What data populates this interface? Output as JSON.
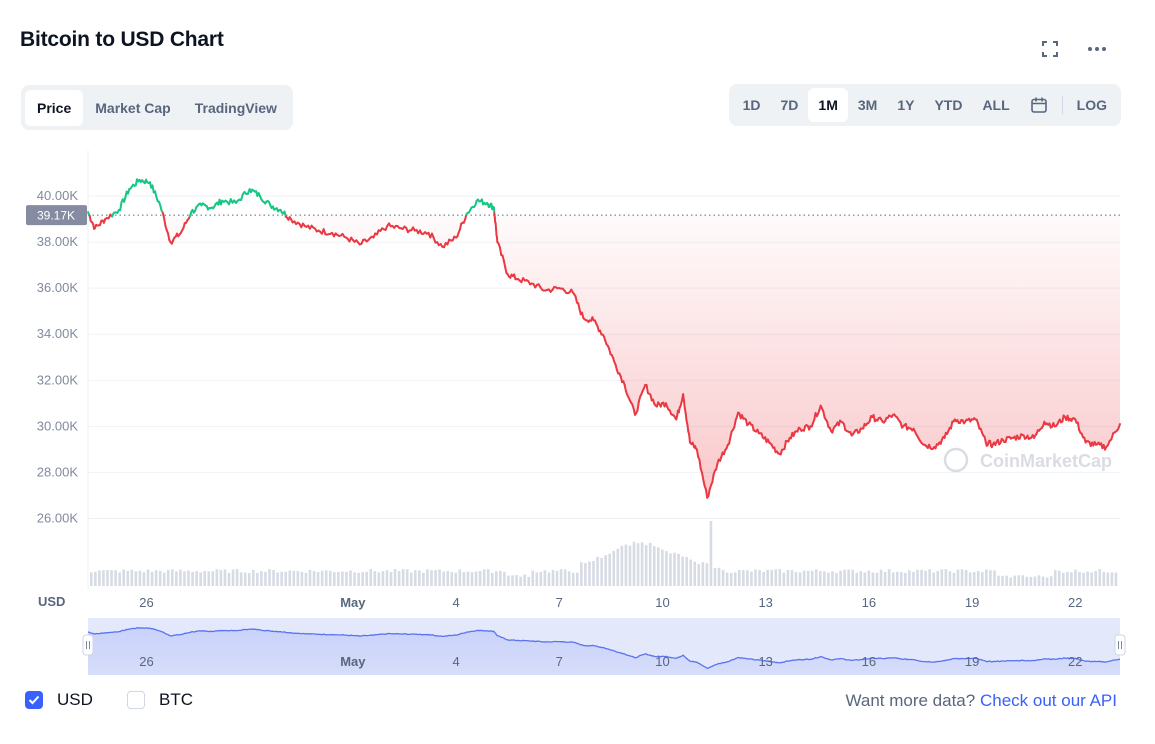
{
  "header": {
    "title": "Bitcoin to USD Chart",
    "fullscreen_icon": "fullscreen-icon",
    "more_icon": "more-horizontal-icon"
  },
  "tabs": [
    {
      "label": "Price",
      "active": true
    },
    {
      "label": "Market Cap",
      "active": false
    },
    {
      "label": "TradingView",
      "active": false
    }
  ],
  "ranges": [
    {
      "label": "1D"
    },
    {
      "label": "7D"
    },
    {
      "label": "1M",
      "active": true
    },
    {
      "label": "3M"
    },
    {
      "label": "1Y"
    },
    {
      "label": "YTD"
    },
    {
      "label": "ALL"
    }
  ],
  "calendar_icon": "calendar-icon",
  "log_label": "LOG",
  "colors": {
    "up": "#16c784",
    "down": "#ea3943",
    "accent": "#3861fb",
    "muted": "#58667e",
    "grid": "#eff2f5"
  },
  "watermark": "CoinMarketCap",
  "chart_data": {
    "type": "line",
    "title": "Bitcoin to USD Chart",
    "ylabel": "",
    "xlabel": "",
    "unit_label": "USD",
    "ylim": [
      24500,
      42000
    ],
    "yticks": [
      26000,
      28000,
      30000,
      32000,
      34000,
      36000,
      38000,
      40000
    ],
    "ytick_labels": [
      "26.00K",
      "28.00K",
      "30.00K",
      "32.00K",
      "34.00K",
      "36.00K",
      "38.00K",
      "40.00K"
    ],
    "xlim": [
      24.3,
      54.3
    ],
    "xticks": [
      26,
      32,
      35,
      38,
      41,
      44,
      47,
      50,
      53
    ],
    "xtick_labels": [
      "26",
      "May",
      "4",
      "7",
      "10",
      "13",
      "16",
      "19",
      "22"
    ],
    "reference": {
      "value": 39170,
      "label": "39.17K"
    },
    "series": [
      {
        "x": [
          24.3,
          24.5,
          24.8,
          25.2,
          25.5,
          25.8,
          26.1,
          26.4,
          26.7,
          27.0,
          27.3,
          27.6,
          27.9,
          28.2,
          28.6,
          29.0,
          29.3,
          29.6,
          29.9,
          30.2,
          30.6,
          31.0,
          31.4,
          31.8,
          32.2,
          32.6,
          33.0,
          33.4,
          33.8,
          34.2,
          34.6,
          35.0,
          35.3,
          35.6,
          35.9,
          36.1,
          36.2,
          36.5,
          36.8,
          37.2,
          37.6,
          38.0,
          38.4,
          38.7,
          39.0,
          39.3,
          39.6,
          39.9,
          40.2,
          40.5,
          40.8,
          41.1,
          41.4,
          41.6,
          41.8,
          42.0,
          42.3,
          42.6,
          42.9,
          43.2,
          43.5,
          43.8,
          44.1,
          44.4,
          44.7,
          45.0,
          45.3,
          45.6,
          45.9,
          46.2,
          46.5,
          46.8,
          47.1,
          47.4,
          47.7,
          48.0,
          48.3,
          48.6,
          48.9,
          49.2,
          49.5,
          49.8,
          50.1,
          50.4,
          50.6,
          50.9,
          51.2,
          51.5,
          51.8,
          52.1,
          52.4,
          52.7,
          53.0,
          53.3,
          53.6,
          53.9,
          54.3
        ],
        "y": [
          39300,
          38600,
          39000,
          39400,
          40300,
          40700,
          40600,
          39600,
          38000,
          38400,
          39300,
          39600,
          39500,
          39800,
          39700,
          40300,
          40000,
          39600,
          39400,
          39000,
          38700,
          38500,
          38400,
          38200,
          37900,
          38200,
          38700,
          38600,
          38500,
          38400,
          37800,
          38200,
          39200,
          39800,
          39700,
          39500,
          38000,
          36600,
          36400,
          36200,
          35900,
          36000,
          35800,
          34700,
          34600,
          33900,
          32800,
          31800,
          30500,
          31800,
          30900,
          31000,
          30300,
          31400,
          29300,
          29000,
          26900,
          28400,
          29200,
          30600,
          30100,
          29700,
          29300,
          28800,
          29500,
          29900,
          30000,
          30900,
          29800,
          30200,
          29600,
          29900,
          30400,
          30200,
          30500,
          30000,
          29900,
          29200,
          29100,
          29500,
          30300,
          30200,
          30300,
          29300,
          29200,
          29400,
          29500,
          29600,
          29500,
          30200,
          30000,
          30400,
          30300,
          29300,
          29200,
          29100,
          30100
        ]
      }
    ]
  }
}
